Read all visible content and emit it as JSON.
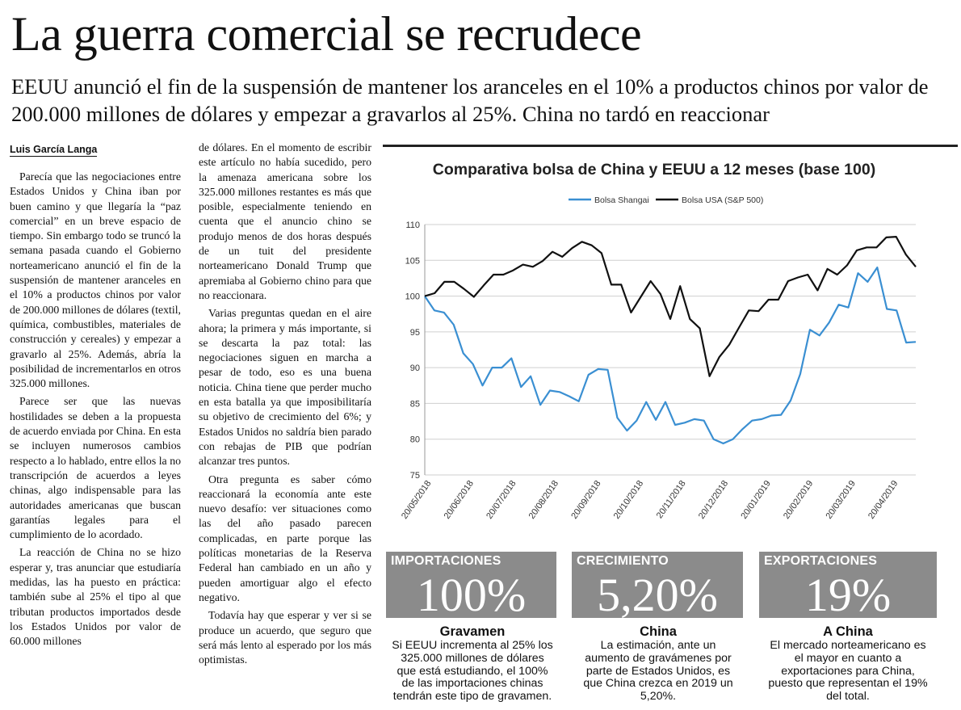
{
  "headline": "La guerra comercial se recrudece",
  "subhead": "EEUU anunció el fin de la suspensión de mantener los aranceles en el 10% a productos chinos por valor de 200.000 millones de dólares y empezar a gravarlos al 25%. China no tardó en reaccionar",
  "byline": "Luis García Langa",
  "column1": [
    "Parecía que las negociaciones entre Estados Unidos y China iban por buen camino y que llegaría la “paz comercial” en un breve espacio de tiempo. Sin embargo todo se truncó la semana pasada cuando el Gobierno norteamericano anunció el fin de la suspensión de mantener aranceles en el 10% a productos chinos por valor de 200.000 millones de dólares (textil, química, combustibles, materiales de construcción y cereales) y empezar a gravarlo al 25%. Además, abría la posibilidad de incrementarlos en otros 325.000 millones.",
    "Parece ser que las nuevas hostilidades se deben a la propuesta de acuerdo enviada por China. En esta se incluyen numerosos cambios respecto a lo hablado, entre ellos la no transcripción de acuerdos a leyes chinas, algo indispensable para las autoridades americanas que buscan garantías legales para el cumplimiento de lo acordado.",
    "La reacción de China no se hizo esperar y, tras anunciar que estudiaría medidas, las ha puesto en práctica: también sube al 25% el tipo al que tributan productos importados desde los Estados Unidos por valor de 60.000 millones"
  ],
  "column2": [
    "de dólares. En el momento de escribir este artículo no había sucedido, pero la amenaza americana sobre los 325.000 millones restantes es más que posible, especialmente teniendo en cuenta que el anuncio chino se produjo menos de dos horas después de un tuit del presidente norteamericano Donald Trump que apremiaba al Gobierno chino para que no reaccionara.",
    "Varias preguntas quedan en el aire ahora; la primera y más importante, si se descarta la paz total: las negociaciones siguen en marcha a pesar de todo, eso es una buena noticia. China tiene que perder mucho en esta batalla ya que imposibilitaría su objetivo de crecimiento del 6%; y Estados Unidos no saldría bien parado con rebajas de PIB que podrían alcanzar tres puntos.",
    "Otra pregunta es saber cómo reaccionará la economía ante este nuevo desafío: ver situaciones como las del año pasado parecen complicadas, en parte porque las políticas monetarias de la Reserva Federal han cambiado en un año y pueden amortiguar algo el efecto negativo.",
    "Todavía hay que esperar y ver si se produce un acuerdo, que seguro que será más lento al esperado por los más optimistas."
  ],
  "chart_data": {
    "type": "line",
    "title": "Comparativa bolsa de China y EEUU a 12 meses (base 100)",
    "xlabel": "",
    "ylabel": "",
    "ylim": [
      75,
      110
    ],
    "yticks": [
      75,
      80,
      85,
      90,
      95,
      100,
      105,
      110
    ],
    "xtick_labels": [
      "20/05/2018",
      "20/06/2018",
      "20/07/2018",
      "20/08/2018",
      "20/09/2018",
      "20/10/2018",
      "20/11/2018",
      "20/12/2018",
      "20/01/2019",
      "20/02/2019",
      "20/03/2019",
      "20/04/2019"
    ],
    "legend": "top",
    "grid": "horizontal",
    "series": [
      {
        "name": "Bolsa Shangai",
        "color": "#3a8fd2",
        "values": [
          100,
          98,
          97.7,
          96,
          92,
          90.5,
          87.5,
          90,
          90,
          91.3,
          87.3,
          88.8,
          84.8,
          86.8,
          86.6,
          86,
          85.3,
          89,
          89.8,
          89.7,
          83,
          81.2,
          82.6,
          85.2,
          82.7,
          85.2,
          82,
          82.3,
          82.8,
          82.6,
          80,
          79.4,
          80,
          81.4,
          82.6,
          82.8,
          83.3,
          83.4,
          85.4,
          89.1,
          95.3,
          94.5,
          96.3,
          98.8,
          98.4,
          103.2,
          102,
          104,
          98.2,
          98,
          93.5,
          93.6
        ]
      },
      {
        "name": "Bolsa USA (S&P 500)",
        "color": "#111111",
        "values": [
          100,
          100.4,
          102,
          102,
          101,
          99.9,
          101.5,
          103,
          103,
          103.6,
          104.4,
          104.1,
          104.9,
          106.2,
          105.5,
          106.7,
          107.6,
          107.1,
          106,
          101.6,
          101.6,
          97.7,
          99.9,
          102.1,
          100.3,
          96.8,
          101.4,
          96.8,
          95.5,
          88.8,
          91.5,
          93.2,
          95.6,
          98,
          97.9,
          99.5,
          99.5,
          102.1,
          102.6,
          103,
          100.8,
          103.8,
          103,
          104.3,
          106.4,
          106.8,
          106.8,
          108.2,
          108.3,
          105.8,
          104.1
        ]
      }
    ]
  },
  "boxes": [
    {
      "label": "IMPORTACIONES",
      "value": "100%",
      "caption_title": "Gravamen",
      "caption_lines": [
        "Si EEUU incrementa al 25% los",
        "325.000 millones de dólares",
        "que está estudiando, el 100%",
        "de las importaciones chinas",
        "tendrán este tipo de gravamen."
      ]
    },
    {
      "label": "CRECIMIENTO",
      "value": "5,20%",
      "caption_title": "China",
      "caption_lines": [
        "La estimación, ante un",
        "aumento de gravámenes por",
        "parte de Estados Unidos, es",
        "que China crezca en 2019 un",
        "5,20%."
      ]
    },
    {
      "label": "EXPORTACIONES",
      "value": "19%",
      "caption_title": "A China",
      "caption_lines": [
        "El mercado norteamericano es",
        "el mayor en cuanto a",
        "exportaciones para China,",
        "puesto que representan el 19%",
        "del total."
      ]
    }
  ]
}
